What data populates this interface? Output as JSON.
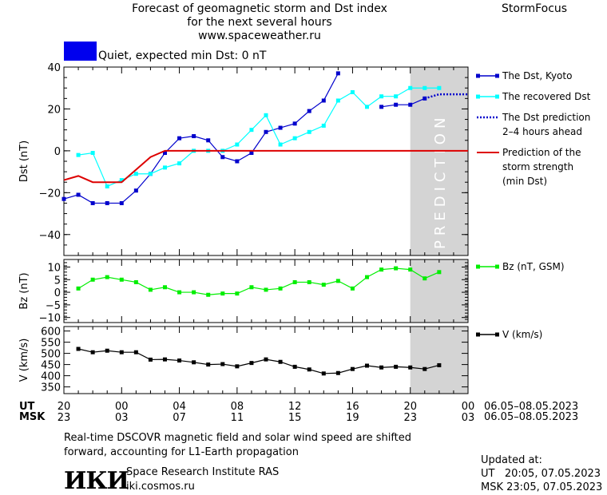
{
  "header": {
    "title_line1": "Forecast of geomagnetic storm and Dst index",
    "title_line2": "for the next several hours",
    "website": "www.spaceweather.ru",
    "brand": "StormFocus"
  },
  "status": {
    "color": "#0000ee",
    "text": "Quiet, expected min Dst: 0 nT"
  },
  "colors": {
    "dst_kyoto": "#0000cc",
    "dst_recovered": "#00ffff",
    "dst_prediction": "#0000cc",
    "storm_strength": "#dd0000",
    "bz": "#00ee00",
    "speed": "#000000",
    "prediction_band": "#d4d4d4"
  },
  "prediction_label": "PREDICTION",
  "legend": {
    "dst_kyoto": "The Dst, Kyoto",
    "dst_recovered": "The recovered Dst",
    "dst_prediction_1": "The Dst prediction",
    "dst_prediction_2": "2–4 hours ahead",
    "strength_1": "Prediction of the",
    "strength_2": "storm strength",
    "strength_3": "(min Dst)",
    "bz": "Bz (nT, GSM)",
    "speed": "V (km/s)"
  },
  "time_axis": {
    "ut_label": "UT",
    "msk_label": "MSK",
    "ut_ticks": [
      "20",
      "00",
      "04",
      "08",
      "12",
      "16",
      "20",
      "00"
    ],
    "msk_ticks": [
      "23",
      "03",
      "07",
      "11",
      "15",
      "19",
      "23",
      "03"
    ],
    "ut_range": "06.05–08.05.2023",
    "msk_range": "06.05–08.05.2023"
  },
  "footer": {
    "note_line1": "Real-time DSCOVR magnetic field and solar wind speed are shifted",
    "note_line2": "forward, accounting for L1-Earth propagation",
    "logo": "ИКИ",
    "institute": "Space Research Institute RAS",
    "institute_url": "iki.cosmos.ru",
    "updated_label": "Updated at:",
    "updated_ut": "UT   20:05, 07.05.2023",
    "updated_msk": "MSK 23:05, 07.05.2023"
  },
  "chart_data": [
    {
      "type": "line",
      "ylabel": "Dst (nT)",
      "ylim": [
        -50,
        40
      ],
      "yticks": [
        "40",
        "20",
        "0",
        "−20",
        "−40"
      ],
      "ytick_values": [
        40,
        20,
        0,
        -20,
        -40
      ],
      "x_hours_since_start": [
        0,
        28
      ],
      "prediction_region": [
        24,
        28
      ],
      "series": [
        {
          "name": "The Dst, Kyoto",
          "x": [
            0,
            1,
            2,
            3,
            4,
            5,
            6,
            7,
            8,
            9,
            10,
            11,
            12,
            13,
            14,
            15,
            16,
            17,
            18,
            19,
            20,
            22,
            23,
            24,
            25
          ],
          "y": [
            -23,
            -21,
            -25,
            -25,
            -25,
            -19,
            -11,
            -1,
            6,
            7,
            5,
            -3,
            -5,
            -1,
            9,
            11,
            13,
            19,
            24,
            37,
            null,
            21,
            22,
            22,
            25
          ]
        },
        {
          "name": "The recovered Dst",
          "x": [
            1,
            2,
            3,
            4,
            5,
            6,
            7,
            8,
            9,
            10,
            11,
            12,
            13,
            14,
            15,
            16,
            17,
            18,
            19,
            20,
            21,
            22,
            23,
            24,
            25,
            26
          ],
          "y": [
            -2,
            -1,
            -17,
            -14,
            -11,
            -11,
            -8,
            -6,
            0,
            0,
            0,
            3,
            10,
            17,
            3,
            6,
            9,
            12,
            24,
            28,
            21,
            26,
            26,
            30,
            30,
            30
          ]
        },
        {
          "name": "The Dst prediction 2–4 hours ahead",
          "x": [
            25,
            26,
            27,
            28
          ],
          "y": [
            25,
            27,
            27,
            27
          ]
        },
        {
          "name": "Prediction of the storm strength (min Dst)",
          "x": [
            0,
            1,
            2,
            3,
            4,
            5,
            6,
            7,
            8,
            28
          ],
          "y": [
            -14,
            -12,
            -15,
            -15,
            -15,
            -9,
            -3,
            0,
            0,
            0
          ]
        }
      ]
    },
    {
      "type": "line",
      "ylabel": "Bz (nT)",
      "ylim": [
        -12,
        13
      ],
      "yticks": [
        "10",
        "5",
        "0",
        "−5",
        "−10"
      ],
      "ytick_values": [
        10,
        5,
        0,
        -5,
        -10
      ],
      "series": [
        {
          "name": "Bz (nT, GSM)",
          "x": [
            1,
            2,
            3,
            4,
            5,
            6,
            7,
            8,
            9,
            10,
            11,
            12,
            13,
            14,
            15,
            16,
            17,
            18,
            19,
            20,
            21,
            22,
            23,
            24,
            25,
            26
          ],
          "y": [
            1.5,
            5,
            6,
            5,
            4,
            1,
            2,
            0,
            0,
            -1,
            -0.5,
            -0.5,
            2,
            1,
            1.5,
            4,
            4,
            3,
            4.5,
            1.5,
            6,
            9,
            9.5,
            9,
            5.5,
            8
          ]
        }
      ]
    },
    {
      "type": "line",
      "ylabel": "V (km/s)",
      "ylim": [
        320,
        620
      ],
      "yticks": [
        "600",
        "550",
        "500",
        "450",
        "400",
        "350"
      ],
      "ytick_values": [
        600,
        550,
        500,
        450,
        400,
        350
      ],
      "series": [
        {
          "name": "V (km/s)",
          "x": [
            1,
            2,
            3,
            4,
            5,
            6,
            7,
            8,
            9,
            10,
            11,
            12,
            13,
            14,
            15,
            16,
            17,
            18,
            19,
            20,
            21,
            22,
            23,
            24,
            25,
            26
          ],
          "y": [
            520,
            505,
            512,
            505,
            505,
            472,
            473,
            468,
            460,
            450,
            452,
            442,
            457,
            473,
            462,
            440,
            428,
            410,
            412,
            430,
            445,
            437,
            440,
            437,
            430,
            447
          ]
        }
      ]
    }
  ]
}
